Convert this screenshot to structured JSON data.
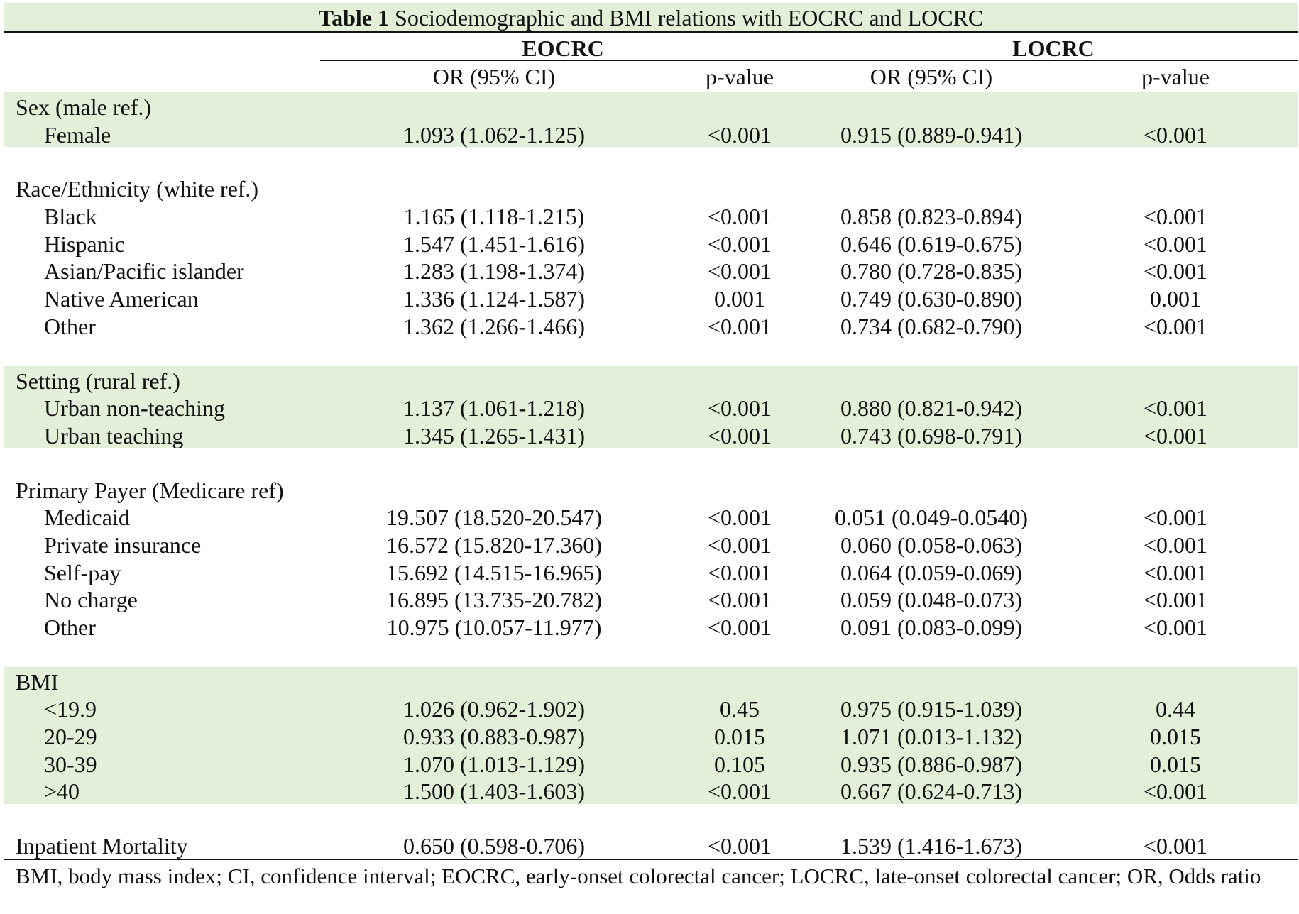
{
  "title": {
    "bold": "Table 1",
    "text": "Sociodemographic and BMI relations with EOCRC and LOCRC"
  },
  "header": {
    "group1": "EOCRC",
    "group2": "LOCRC",
    "col_or1": "OR (95% CI)",
    "col_p1": "p-value",
    "col_or2": "OR (95% CI)",
    "col_p2": "p-value"
  },
  "sections": [
    {
      "heading": "Sex (male ref.)",
      "rows": [
        {
          "label": "Female",
          "or1": "1.093 (1.062-1.125)",
          "p1": "<0.001",
          "or2": "0.915 (0.889-0.941)",
          "p2": "<0.001"
        }
      ]
    },
    {
      "heading": "Race/Ethnicity (white ref.)",
      "rows": [
        {
          "label": "Black",
          "or1": "1.165 (1.118-1.215)",
          "p1": "<0.001",
          "or2": "0.858 (0.823-0.894)",
          "p2": "<0.001"
        },
        {
          "label": "Hispanic",
          "or1": "1.547 (1.451-1.616)",
          "p1": "<0.001",
          "or2": "0.646 (0.619-0.675)",
          "p2": "<0.001"
        },
        {
          "label": "Asian/Pacific islander",
          "or1": "1.283 (1.198-1.374)",
          "p1": "<0.001",
          "or2": "0.780 (0.728-0.835)",
          "p2": "<0.001"
        },
        {
          "label": "Native American",
          "or1": "1.336 (1.124-1.587)",
          "p1": "0.001",
          "or2": "0.749 (0.630-0.890)",
          "p2": "0.001"
        },
        {
          "label": "Other",
          "or1": "1.362 (1.266-1.466)",
          "p1": "<0.001",
          "or2": "0.734 (0.682-0.790)",
          "p2": "<0.001"
        }
      ]
    },
    {
      "heading": "Setting (rural ref.)",
      "rows": [
        {
          "label": "Urban non-teaching",
          "or1": "1.137 (1.061-1.218)",
          "p1": "<0.001",
          "or2": "0.880 (0.821-0.942)",
          "p2": "<0.001"
        },
        {
          "label": "Urban teaching",
          "or1": "1.345 (1.265-1.431)",
          "p1": "<0.001",
          "or2": "0.743 (0.698-0.791)",
          "p2": "<0.001"
        }
      ]
    },
    {
      "heading": "Primary Payer (Medicare ref)",
      "rows": [
        {
          "label": "Medicaid",
          "or1": "19.507 (18.520-20.547)",
          "p1": "<0.001",
          "or2": "0.051 (0.049-0.0540)",
          "p2": "<0.001"
        },
        {
          "label": "Private insurance",
          "or1": "16.572 (15.820-17.360)",
          "p1": "<0.001",
          "or2": "0.060 (0.058-0.063)",
          "p2": "<0.001"
        },
        {
          "label": "Self-pay",
          "or1": "15.692 (14.515-16.965)",
          "p1": "<0.001",
          "or2": "0.064 (0.059-0.069)",
          "p2": "<0.001"
        },
        {
          "label": "No charge",
          "or1": "16.895 (13.735-20.782)",
          "p1": "<0.001",
          "or2": "0.059 (0.048-0.073)",
          "p2": "<0.001"
        },
        {
          "label": "Other",
          "or1": "10.975 (10.057-11.977)",
          "p1": "<0.001",
          "or2": "0.091 (0.083-0.099)",
          "p2": "<0.001"
        }
      ]
    },
    {
      "heading": "BMI",
      "rows": [
        {
          "label": "<19.9",
          "or1": "1.026 (0.962-1.902)",
          "p1": "0.45",
          "or2": "0.975 (0.915-1.039)",
          "p2": "0.44"
        },
        {
          "label": "20-29",
          "or1": "0.933 (0.883-0.987)",
          "p1": "0.015",
          "or2": "1.071 (0.013-1.132)",
          "p2": "0.015"
        },
        {
          "label": "30-39",
          "or1": "1.070 (1.013-1.129)",
          "p1": "0.105",
          "or2": "0.935 (0.886-0.987)",
          "p2": "0.015"
        },
        {
          "label": ">40",
          "or1": "1.500 (1.403-1.603)",
          "p1": "<0.001",
          "or2": "0.667 (0.624-0.713)",
          "p2": "<0.001"
        }
      ]
    }
  ],
  "mortality": {
    "label": "Inpatient Mortality",
    "or1": "0.650 (0.598-0.706)",
    "p1": "<0.001",
    "or2": "1.539 (1.416-1.673)",
    "p2": "<0.001"
  },
  "footnote": "BMI, body mass index; CI, confidence interval; EOCRC, early-onset colorectal cancer; LOCRC, late-onset colorectal cancer; OR, Odds ratio",
  "colors": {
    "highlight": "#e2f0d9"
  }
}
